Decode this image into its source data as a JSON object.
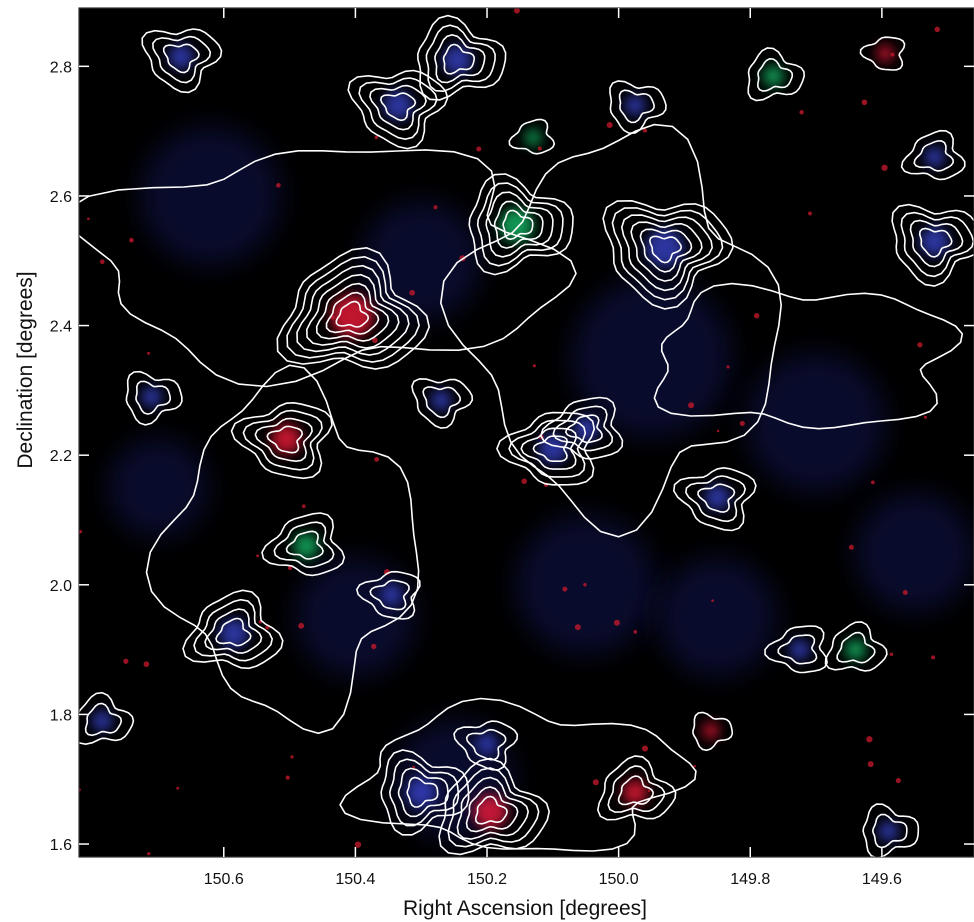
{
  "chart_data": {
    "type": "heatmap",
    "description_free": true,
    "xlabel": "Right Ascension [degrees]",
    "ylabel": "Declination [degrees]",
    "xlim": [
      150.82,
      149.46
    ],
    "ylim": [
      1.58,
      2.89
    ],
    "x_reversed": true,
    "x_ticks": [
      150.6,
      150.4,
      150.2,
      150.0,
      149.8,
      149.6
    ],
    "x_tick_labels": [
      "150.6",
      "150.4",
      "150.2",
      "150.0",
      "149.8",
      "149.6"
    ],
    "y_ticks": [
      1.6,
      1.8,
      2.0,
      2.2,
      2.4,
      2.6,
      2.8
    ],
    "y_tick_labels": [
      "1.6",
      "1.8",
      "2.0",
      "2.2",
      "2.4",
      "2.6",
      "2.8"
    ],
    "grid": false,
    "background_color": "#000000",
    "contour_color": "#ffffff",
    "emission_colors": {
      "red": "#ff1e3c",
      "green": "#18c870",
      "blue": "#3a46d2"
    },
    "sources": [
      {
        "ra": 150.405,
        "dec": 2.415,
        "color": "red",
        "contour_levels": 7
      },
      {
        "ra": 150.155,
        "dec": 2.555,
        "color": "green",
        "contour_levels": 5
      },
      {
        "ra": 149.93,
        "dec": 2.52,
        "color": "blue",
        "contour_levels": 6
      },
      {
        "ra": 150.505,
        "dec": 2.225,
        "color": "red",
        "contour_levels": 4
      },
      {
        "ra": 150.475,
        "dec": 2.06,
        "color": "green",
        "contour_levels": 3
      },
      {
        "ra": 150.195,
        "dec": 1.65,
        "color": "red",
        "contour_levels": 5
      },
      {
        "ra": 149.86,
        "dec": 1.775,
        "color": "red",
        "contour_levels": 1
      },
      {
        "ra": 150.335,
        "dec": 2.74,
        "color": "blue",
        "contour_levels": 4
      },
      {
        "ra": 150.1,
        "dec": 2.21,
        "color": "blue",
        "contour_levels": 4
      },
      {
        "ra": 150.585,
        "dec": 1.925,
        "color": "blue",
        "contour_levels": 4
      },
      {
        "ra": 150.245,
        "dec": 2.81,
        "color": "blue",
        "contour_levels": 4
      },
      {
        "ra": 149.52,
        "dec": 2.53,
        "color": "blue",
        "contour_levels": 4
      },
      {
        "ra": 149.85,
        "dec": 2.135,
        "color": "blue",
        "contour_levels": 3
      },
      {
        "ra": 150.05,
        "dec": 2.24,
        "color": "blue",
        "contour_levels": 3
      },
      {
        "ra": 149.975,
        "dec": 1.68,
        "color": "red",
        "contour_levels": 3
      },
      {
        "ra": 150.3,
        "dec": 1.68,
        "color": "blue",
        "contour_levels": 4
      },
      {
        "ra": 150.665,
        "dec": 2.815,
        "color": "blue",
        "contour_levels": 3
      },
      {
        "ra": 149.595,
        "dec": 2.82,
        "color": "red",
        "contour_levels": 1
      },
      {
        "ra": 149.52,
        "dec": 2.66,
        "color": "blue",
        "contour_levels": 2
      },
      {
        "ra": 149.765,
        "dec": 2.785,
        "color": "green",
        "contour_levels": 2
      },
      {
        "ra": 149.975,
        "dec": 2.74,
        "color": "blue",
        "contour_levels": 2
      },
      {
        "ra": 150.2,
        "dec": 1.755,
        "color": "blue",
        "contour_levels": 2
      },
      {
        "ra": 149.725,
        "dec": 1.9,
        "color": "blue",
        "contour_levels": 2
      },
      {
        "ra": 149.64,
        "dec": 1.9,
        "color": "green",
        "contour_levels": 2
      },
      {
        "ra": 149.59,
        "dec": 1.62,
        "color": "blue",
        "contour_levels": 2
      },
      {
        "ra": 150.27,
        "dec": 2.285,
        "color": "blue",
        "contour_levels": 2
      },
      {
        "ra": 150.345,
        "dec": 1.985,
        "color": "blue",
        "contour_levels": 2
      },
      {
        "ra": 150.13,
        "dec": 2.69,
        "color": "green",
        "contour_levels": 1
      },
      {
        "ra": 150.785,
        "dec": 1.79,
        "color": "blue",
        "contour_levels": 2
      },
      {
        "ra": 150.71,
        "dec": 2.29,
        "color": "blue",
        "contour_levels": 2
      }
    ]
  }
}
